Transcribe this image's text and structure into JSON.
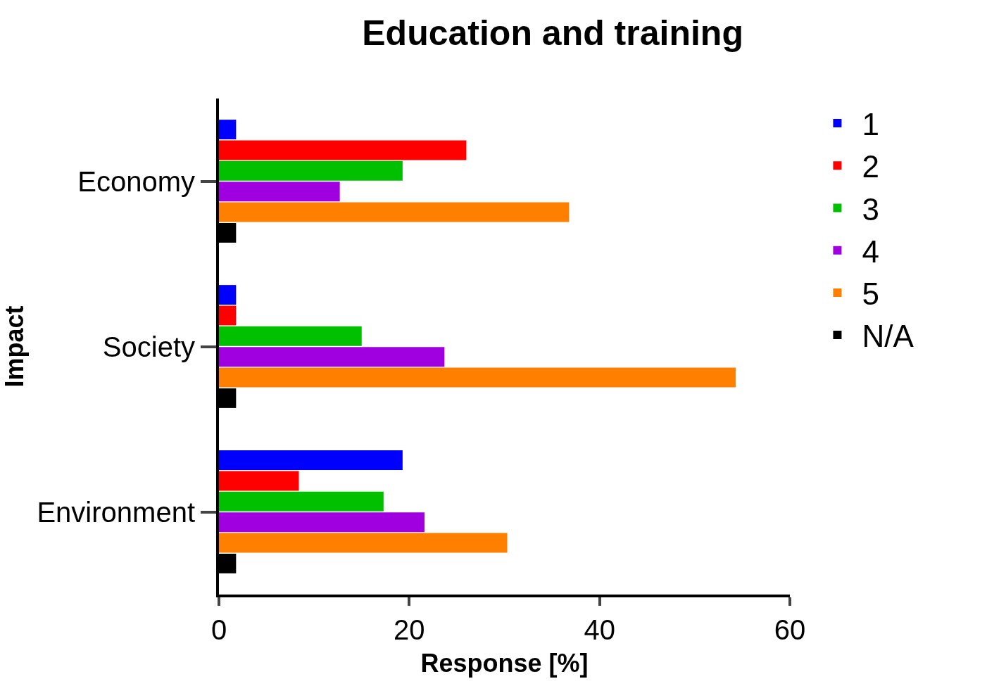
{
  "chart_data": {
    "type": "bar",
    "orientation": "horizontal",
    "title": "Education and training",
    "xlabel": "Response [%]",
    "ylabel": "Impact",
    "categories": [
      "Economy",
      "Society",
      "Environment"
    ],
    "series": [
      {
        "name": "1",
        "color": "#0000ff",
        "values": [
          1.8,
          1.8,
          19.3
        ]
      },
      {
        "name": "2",
        "color": "#ff0000",
        "values": [
          26.0,
          1.8,
          8.4
        ]
      },
      {
        "name": "3",
        "color": "#00c000",
        "values": [
          19.3,
          15.0,
          17.3
        ]
      },
      {
        "name": "4",
        "color": "#a000e0",
        "values": [
          12.7,
          23.7,
          21.6
        ]
      },
      {
        "name": "5",
        "color": "#ff8000",
        "values": [
          36.8,
          54.3,
          30.3
        ]
      },
      {
        "name": "N/A",
        "color": "#000000",
        "values": [
          1.8,
          1.8,
          1.8
        ]
      }
    ],
    "xlim": [
      0,
      60
    ],
    "xticks": [
      0,
      20,
      40,
      60
    ],
    "legend": "right"
  }
}
